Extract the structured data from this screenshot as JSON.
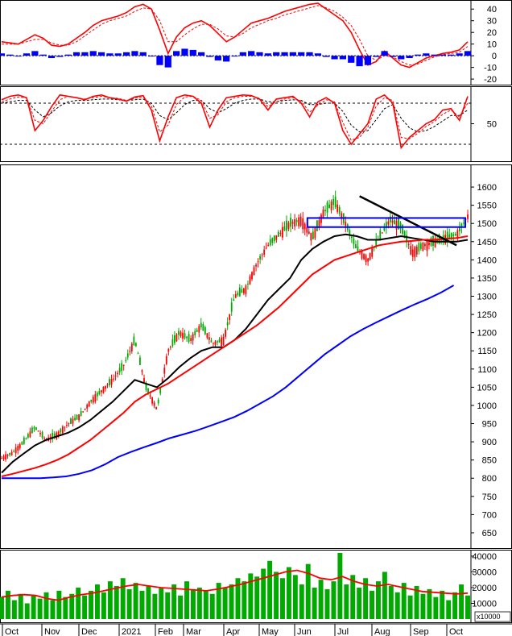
{
  "chart_data": [
    {
      "panel": "macd",
      "type": "line",
      "yticks": [
        40,
        30,
        20,
        10,
        0,
        -10,
        -20
      ],
      "ylim": [
        -22,
        45
      ],
      "series": [
        {
          "role": "macd",
          "color": "#ff0000",
          "values": [
            12,
            11,
            10,
            14,
            18,
            15,
            9,
            8,
            10,
            15,
            20,
            26,
            30,
            32,
            34,
            37,
            42,
            44,
            40,
            22,
            2,
            16,
            24,
            28,
            30,
            26,
            19,
            12,
            16,
            22,
            28,
            30,
            32,
            35,
            38,
            40,
            42,
            44,
            45,
            40,
            35,
            30,
            20,
            5,
            -8,
            -5,
            4,
            -2,
            -8,
            -10,
            -6,
            -2,
            0,
            2,
            3,
            5,
            12
          ]
        },
        {
          "role": "signal",
          "color": "#ff0000",
          "dashed": true,
          "values": [
            10,
            10,
            10,
            12,
            14,
            14,
            11,
            9,
            9,
            12,
            17,
            22,
            27,
            30,
            32,
            34,
            38,
            41,
            40,
            30,
            12,
            12,
            18,
            23,
            27,
            27,
            23,
            17,
            16,
            19,
            24,
            27,
            30,
            32,
            35,
            37,
            39,
            41,
            43,
            41,
            38,
            33,
            26,
            14,
            0,
            -4,
            0,
            -1,
            -5,
            -8,
            -7,
            -4,
            -1,
            1,
            2,
            3,
            8
          ]
        },
        {
          "role": "histogram",
          "type": "bar",
          "color": "#0000ff",
          "values": [
            2,
            1,
            0,
            2,
            4,
            1,
            -2,
            -1,
            1,
            3,
            3,
            4,
            3,
            2,
            2,
            3,
            4,
            3,
            0,
            -8,
            -10,
            4,
            6,
            5,
            3,
            -1,
            -4,
            -5,
            0,
            3,
            4,
            3,
            2,
            3,
            3,
            3,
            3,
            3,
            2,
            -1,
            -3,
            -3,
            -6,
            -9,
            -8,
            -1,
            4,
            -1,
            -3,
            -2,
            1,
            2,
            1,
            1,
            1,
            2,
            4
          ]
        }
      ]
    },
    {
      "panel": "stochastic",
      "type": "line",
      "yticks": [
        50
      ],
      "ylim": [
        0,
        100
      ],
      "reference_lines": [
        80,
        20
      ],
      "series": [
        {
          "role": "k",
          "color": "#ff0000",
          "values": [
            85,
            90,
            92,
            88,
            40,
            55,
            75,
            92,
            90,
            88,
            85,
            90,
            92,
            88,
            86,
            83,
            89,
            91,
            70,
            25,
            60,
            88,
            92,
            90,
            80,
            45,
            70,
            88,
            90,
            92,
            91,
            86,
            70,
            86,
            88,
            90,
            80,
            60,
            82,
            88,
            80,
            40,
            20,
            35,
            50,
            86,
            92,
            80,
            15,
            30,
            40,
            50,
            56,
            70,
            72,
            55,
            90
          ]
        },
        {
          "role": "d",
          "color": "#ff0000",
          "dashed": true,
          "values": [
            82,
            86,
            89,
            88,
            55,
            50,
            68,
            85,
            90,
            88,
            86,
            88,
            90,
            88,
            87,
            84,
            87,
            89,
            76,
            38,
            48,
            78,
            89,
            90,
            84,
            58,
            63,
            82,
            88,
            90,
            90,
            87,
            75,
            82,
            86,
            88,
            83,
            67,
            77,
            85,
            82,
            52,
            26,
            30,
            45,
            76,
            88,
            84,
            30,
            28,
            36,
            46,
            53,
            64,
            70,
            60,
            80
          ]
        },
        {
          "role": "smooth",
          "color": "#000000",
          "dashed": true,
          "values": [
            80,
            82,
            84,
            84,
            70,
            60,
            66,
            76,
            82,
            84,
            84,
            85,
            86,
            86,
            85,
            84,
            85,
            86,
            80,
            62,
            56,
            66,
            78,
            84,
            84,
            72,
            66,
            72,
            80,
            84,
            86,
            86,
            82,
            82,
            84,
            85,
            84,
            78,
            78,
            80,
            80,
            68,
            48,
            38,
            40,
            56,
            72,
            78,
            58,
            44,
            38,
            40,
            46,
            54,
            62,
            62,
            70
          ]
        }
      ]
    },
    {
      "panel": "price",
      "type": "line",
      "yticks": [
        1600,
        1550,
        1500,
        1450,
        1400,
        1350,
        1300,
        1250,
        1200,
        1150,
        1100,
        1050,
        1000,
        950,
        900,
        850,
        800,
        750,
        700,
        650
      ],
      "ylim": [
        630,
        1640
      ],
      "x_labels": [
        "Oct",
        "Nov",
        "Dec",
        "2021",
        "Feb",
        "Mar",
        "Apr",
        "May",
        "Jun",
        "Jul",
        "Aug",
        "Sep",
        "Oct"
      ],
      "series": [
        {
          "role": "price",
          "type": "candlestick",
          "up_color": "#00aa00",
          "down_color": "#ff0000",
          "values": [
            855,
            870,
            900,
            940,
            905,
            920,
            950,
            970,
            1010,
            1040,
            1070,
            1110,
            1180,
            1050,
            990,
            1150,
            1200,
            1180,
            1220,
            1170,
            1180,
            1300,
            1320,
            1390,
            1440,
            1470,
            1500,
            1510,
            1460,
            1530,
            1560,
            1500,
            1430,
            1400,
            1460,
            1510,
            1490,
            1420,
            1440,
            1450,
            1460,
            1470,
            1520
          ]
        },
        {
          "role": "ma20",
          "color": "#000000",
          "values": [
            815,
            845,
            868,
            890,
            905,
            915,
            925,
            940,
            960,
            985,
            1010,
            1040,
            1070,
            1060,
            1050,
            1075,
            1105,
            1130,
            1150,
            1160,
            1160,
            1180,
            1210,
            1250,
            1290,
            1320,
            1350,
            1400,
            1430,
            1450,
            1465,
            1470,
            1465,
            1455,
            1455,
            1460,
            1465,
            1460,
            1455,
            1450,
            1450,
            1450,
            1455
          ]
        },
        {
          "role": "ma50",
          "color": "#ff0000",
          "values": [
            805,
            812,
            820,
            828,
            838,
            850,
            865,
            885,
            905,
            930,
            955,
            980,
            1010,
            1030,
            1045,
            1060,
            1080,
            1100,
            1120,
            1140,
            1160,
            1180,
            1200,
            1220,
            1245,
            1270,
            1300,
            1330,
            1360,
            1380,
            1400,
            1410,
            1420,
            1430,
            1440,
            1445,
            1450,
            1452,
            1455,
            1455,
            1458,
            1460,
            1465
          ]
        },
        {
          "role": "ma200",
          "color": "#0000ff",
          "values": [
            800,
            800,
            800,
            800,
            802,
            805,
            812,
            822,
            838,
            858,
            872,
            885,
            897,
            910,
            920,
            930,
            942,
            955,
            968,
            985,
            1005,
            1025,
            1050,
            1080,
            1110,
            1140,
            1165,
            1190,
            1210,
            1228,
            1245,
            1262,
            1278,
            1293,
            1310,
            1330
          ]
        }
      ],
      "annotations": [
        {
          "type": "trendline",
          "color": "#000000",
          "from": [
            9.6,
            1575
          ],
          "to": [
            12.2,
            1440
          ]
        },
        {
          "type": "box",
          "color": "#0000ff",
          "x": [
            8.2,
            12.5
          ],
          "y": [
            1490,
            1515
          ]
        }
      ]
    },
    {
      "panel": "volume",
      "type": "bar",
      "yticks": [
        40000,
        30000,
        20000,
        10000
      ],
      "ylim": [
        0,
        42000
      ],
      "unit_label": "x10000",
      "series": [
        {
          "role": "volume",
          "color": "#00aa00",
          "values": [
            14000,
            18000,
            12000,
            16000,
            10000,
            15000,
            13000,
            17000,
            12000,
            18000,
            14000,
            16000,
            20000,
            15000,
            18000,
            22000,
            17000,
            24000,
            21000,
            26000,
            19000,
            23000,
            18000,
            21000,
            16000,
            20000,
            17000,
            22000,
            15000,
            24000,
            19000,
            20000,
            18000,
            16000,
            23000,
            20000,
            22000,
            26000,
            24000,
            29000,
            27000,
            32000,
            37000,
            30000,
            26000,
            33000,
            28000,
            22000,
            35000,
            20000,
            25000,
            19000,
            24000,
            42000,
            22000,
            28000,
            20000,
            26000,
            18000,
            24000,
            30000,
            21000,
            17000,
            23000,
            15000,
            21000,
            16000,
            19000,
            14000,
            18000,
            12000,
            17000,
            22000,
            15000
          ]
        },
        {
          "role": "volume_ma",
          "color": "#ff0000",
          "values": [
            14000,
            15000,
            15500,
            15000,
            13000,
            12000,
            14000,
            15500,
            16500,
            18000,
            19500,
            21000,
            22000,
            21000,
            20000,
            19500,
            19000,
            18500,
            18000,
            19000,
            20500,
            22000,
            24000,
            26000,
            28000,
            30000,
            31000,
            29000,
            26000,
            25000,
            27000,
            24000,
            22000,
            21000,
            22000,
            20500,
            19000,
            17500,
            17000,
            16500,
            16000,
            16500
          ]
        }
      ]
    }
  ]
}
